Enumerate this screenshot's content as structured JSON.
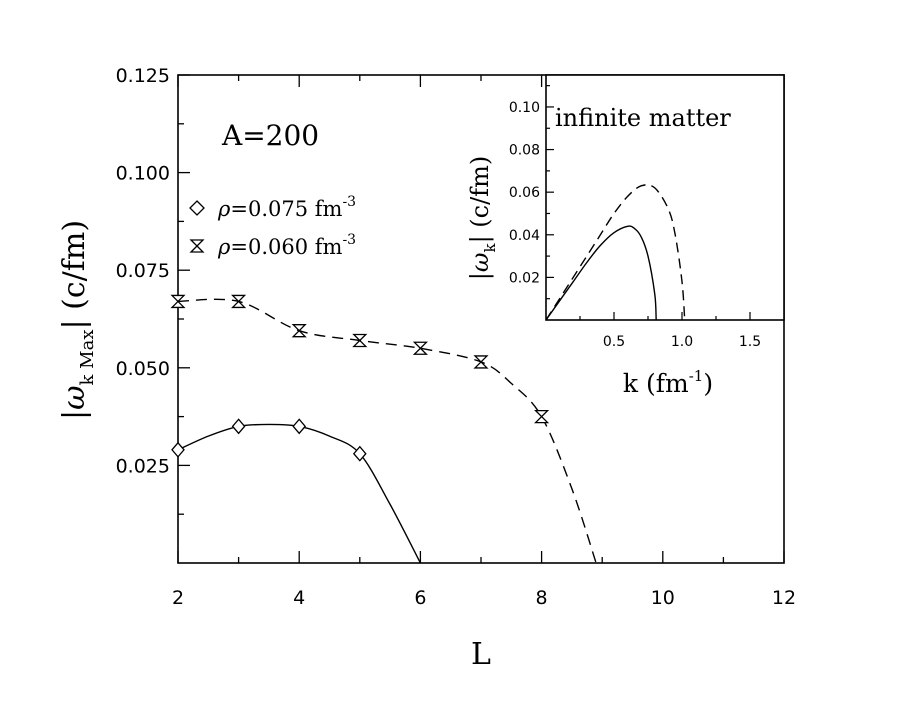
{
  "chart_data": [
    {
      "type": "line",
      "annotation": "A=200",
      "xlabel": "L",
      "ylabel": "|ω_kMax| (c/fm)",
      "ylabel_parts": {
        "omega": "ω",
        "sub": "k Max",
        "unit": "(c/fm)"
      },
      "xlim": [
        2,
        12
      ],
      "ylim": [
        0,
        0.125
      ],
      "x_ticks": [
        "2",
        "4",
        "6",
        "8",
        "10",
        "12"
      ],
      "y_ticks": [
        "0.025",
        "0.050",
        "0.075",
        "0.100",
        "0.125"
      ],
      "grid": false,
      "legend_position": "top-left",
      "series": [
        {
          "name": "ρ=0.075 fm^-3",
          "legend": {
            "rho": "ρ",
            "text": "=0.075 fm",
            "sup": "-3"
          },
          "marker": "diamond",
          "line": "solid",
          "x": [
            2,
            3,
            4,
            5
          ],
          "y": [
            0.029,
            0.035,
            0.035,
            0.028
          ],
          "curve": [
            [
              2,
              0.029
            ],
            [
              2.5,
              0.0325
            ],
            [
              3,
              0.035
            ],
            [
              3.5,
              0.0355
            ],
            [
              4,
              0.035
            ],
            [
              4.5,
              0.0325
            ],
            [
              5,
              0.028
            ],
            [
              5.5,
              0.015
            ],
            [
              6,
              0
            ]
          ]
        },
        {
          "name": "ρ=0.060 fm^-3",
          "legend": {
            "rho": "ρ",
            "text": "=0.060 fm",
            "sup": "-3"
          },
          "marker": "hourglass",
          "line": "dashed",
          "x": [
            2,
            3,
            4,
            5,
            6,
            7,
            8
          ],
          "y": [
            0.067,
            0.067,
            0.0595,
            0.057,
            0.055,
            0.0515,
            0.0375
          ],
          "curve": [
            [
              2,
              0.067
            ],
            [
              3,
              0.067
            ],
            [
              4,
              0.0595
            ],
            [
              5,
              0.057
            ],
            [
              6,
              0.055
            ],
            [
              7,
              0.0515
            ],
            [
              7.5,
              0.046
            ],
            [
              8,
              0.0375
            ],
            [
              8.5,
              0.019
            ],
            [
              8.9,
              0
            ]
          ]
        }
      ]
    },
    {
      "type": "line",
      "title": "infinite matter",
      "xlabel": "k (fm^-1)",
      "xlabel_parts": {
        "base": "k (fm",
        "sup": "-1",
        "tail": ")"
      },
      "ylabel": "|ω_k| (c/fm)",
      "ylabel_parts": {
        "omega": "ω",
        "sub": "k",
        "unit": "(c/fm)"
      },
      "xlim": [
        0,
        1.75
      ],
      "ylim": [
        0,
        0.115
      ],
      "x_ticks": [
        "0.5",
        "1.0",
        "1.5"
      ],
      "y_ticks": [
        "0.02",
        "0.04",
        "0.06",
        "0.08",
        "0.10"
      ],
      "grid": false,
      "series": [
        {
          "line": "solid",
          "x": [
            0,
            0.1,
            0.2,
            0.3,
            0.4,
            0.5,
            0.6,
            0.65,
            0.7,
            0.75,
            0.8,
            0.81
          ],
          "y": [
            0,
            0.009,
            0.018,
            0.027,
            0.035,
            0.041,
            0.044,
            0.043,
            0.039,
            0.03,
            0.012,
            0
          ]
        },
        {
          "line": "dashed",
          "x": [
            0,
            0.1,
            0.2,
            0.3,
            0.4,
            0.5,
            0.6,
            0.7,
            0.8,
            0.9,
            0.95,
            1.0,
            1.02
          ],
          "y": [
            0,
            0.01,
            0.02,
            0.03,
            0.04,
            0.05,
            0.058,
            0.063,
            0.062,
            0.052,
            0.04,
            0.018,
            0
          ]
        }
      ]
    }
  ]
}
